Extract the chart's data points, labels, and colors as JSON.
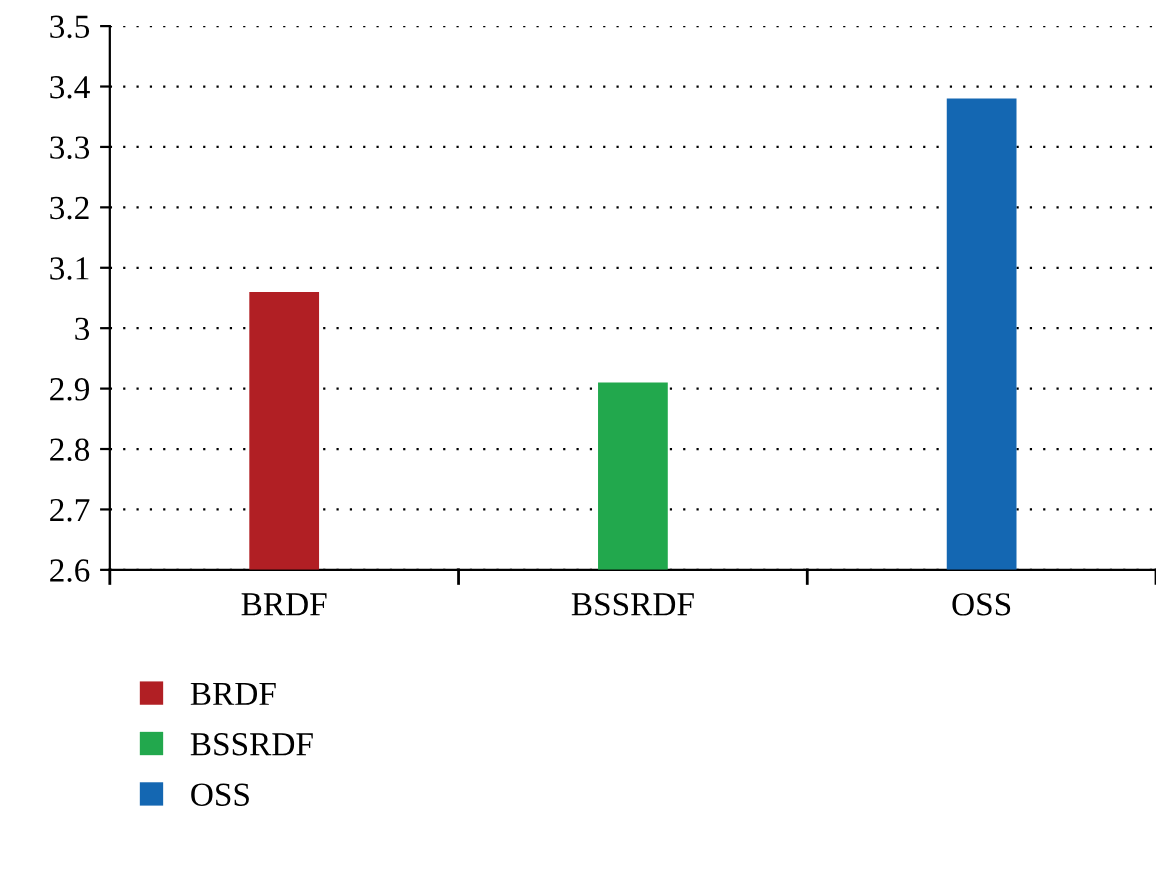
{
  "chart_data": {
    "type": "bar",
    "categories": [
      "BRDF",
      "BSSRDF",
      "OSS"
    ],
    "series": [
      {
        "name": "BRDF",
        "color": "#b11f24",
        "values": [
          3.06,
          null,
          null
        ]
      },
      {
        "name": "BSSRDF",
        "color": "#22a84d",
        "values": [
          null,
          2.91,
          null
        ]
      },
      {
        "name": "OSS",
        "color": "#1467b2",
        "values": [
          null,
          null,
          3.38
        ]
      }
    ],
    "ylim": [
      2.6,
      3.5
    ],
    "yticks": [
      2.6,
      2.7,
      2.8,
      2.9,
      3,
      3.1,
      3.2,
      3.3,
      3.4,
      3.5
    ],
    "grid": "y",
    "legend": "bottom left"
  }
}
